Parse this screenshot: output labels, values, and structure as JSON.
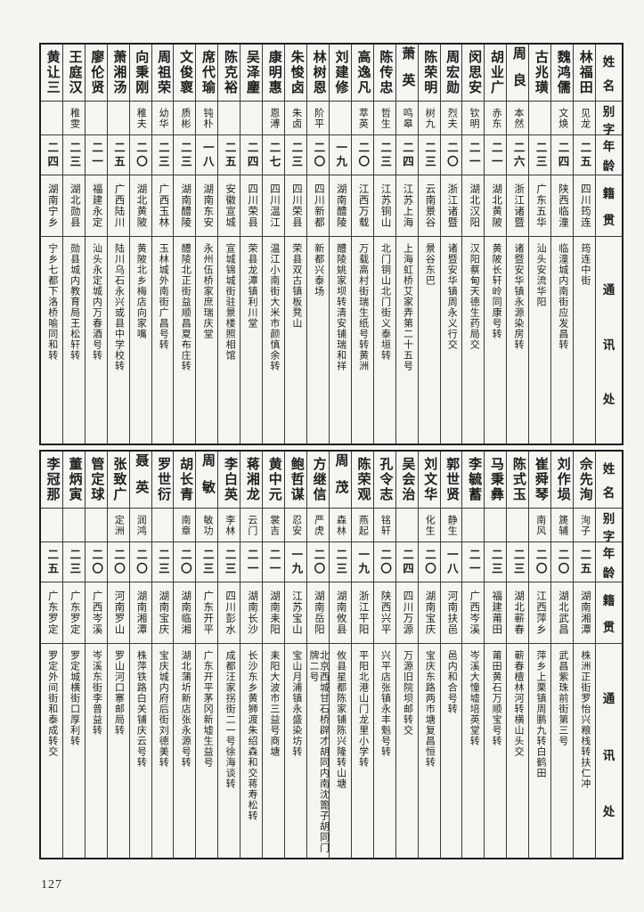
{
  "page": {
    "number": "127"
  },
  "headers": [
    "姓名",
    "别字",
    "年龄",
    "籍贯",
    "通讯处"
  ],
  "tables": [
    {
      "entries": [
        {
          "name": "林福田",
          "zi": "见龙",
          "age": "二五",
          "native": "四川筠连",
          "address": "筠连中街"
        },
        {
          "name": "魏鸿儒",
          "zi": "文焕",
          "age": "二四",
          "native": "陕西临潼",
          "address": "临潼城内南街应发昌转"
        },
        {
          "name": "古兆璜",
          "zi": "",
          "age": "二三",
          "native": "广东五华",
          "address": "汕头安流华阳"
        },
        {
          "name": "周良",
          "zi": "本然",
          "age": "二六",
          "native": "浙江诸暨",
          "address": "诸暨安华镇永源染房转"
        },
        {
          "name": "胡业广",
          "zi": "赤东",
          "age": "二一",
          "native": "湖北黄陂",
          "address": "黄陂长轩岭同康号转"
        },
        {
          "name": "闵思安",
          "zi": "钦明",
          "age": "二一",
          "native": "湖北汉阳",
          "address": "汉阳蔡甸天德生药局交"
        },
        {
          "name": "周宏勋",
          "zi": "烈夫",
          "age": "二〇",
          "native": "浙江诸暨",
          "address": "诸暨安华镇周永义行交"
        },
        {
          "name": "陈荣明",
          "zi": "树九",
          "age": "二三",
          "native": "云南景谷",
          "address": "景谷东巴"
        },
        {
          "name": "萧英",
          "zi": "鸣皋",
          "age": "二四",
          "native": "江苏上海",
          "address": "上海虹桥艾家弄第二十五号"
        },
        {
          "name": "陈传忠",
          "zi": "哲生",
          "age": "二三",
          "native": "江苏铜山",
          "address": "北门铜山北门街义泰垣转"
        },
        {
          "name": "高逸凡",
          "zi": "萃英",
          "age": "二〇",
          "native": "江西万载",
          "address": "万载高村街瑞生纸号转黄洲"
        },
        {
          "name": "刘建修",
          "zi": "",
          "age": "一九",
          "native": "湖南醴陵",
          "address": "醴陵姚家坝转清安铺瑞和祥"
        },
        {
          "name": "林树恩",
          "zi": "阶平",
          "age": "二〇",
          "native": "四川新都",
          "address": "新都兴泰场"
        },
        {
          "name": "朱悛卤",
          "zi": "朱卤",
          "age": "二三",
          "native": "四川荣县",
          "address": "荣县双古镇板凳山"
        },
        {
          "name": "康明惠",
          "zi": "恩溥",
          "age": "二七",
          "native": "四川温江",
          "address": "温江小南街大米市颜慎余转"
        },
        {
          "name": "吴泽麈",
          "zi": "",
          "age": "二四",
          "native": "四川荣县",
          "address": "荣县龙潭镇利川堂"
        },
        {
          "name": "陈克裕",
          "zi": "",
          "age": "二五",
          "native": "安徽宣城",
          "address": "宣城锦城街驻景楼照相馆"
        },
        {
          "name": "席代瑜",
          "zi": "钝朴",
          "age": "一八",
          "native": "湖南东安",
          "address": "永州伍桥家庶瑞庆堂"
        },
        {
          "name": "文俊褱",
          "zi": "质彬",
          "age": "二三",
          "native": "湖南醴陵",
          "address": "醴陵北正街益顺昌夏布庄转"
        },
        {
          "name": "周祖荣",
          "zi": "幼华",
          "age": "二三",
          "native": "广西玉林",
          "address": "玉林城外南街广昌号转"
        },
        {
          "name": "向秉刚",
          "zi": "稚夫",
          "age": "二〇",
          "native": "湖北黄陂",
          "address": "黄陂北乡梅店向家嘴"
        },
        {
          "name": "萧湘汤",
          "zi": "",
          "age": "二五",
          "native": "广西陆川",
          "address": "陆川乌石永兴或县中学校转"
        },
        {
          "name": "廖伦贤",
          "zi": "",
          "age": "二一",
          "native": "福建永定",
          "address": "汕头永定城内万春酒号转"
        },
        {
          "name": "王庭汉",
          "zi": "稚雯",
          "age": "二三",
          "native": "湖北勋县",
          "address": "勋县城内教育局王松轩转"
        },
        {
          "name": "黄让三",
          "zi": "",
          "age": "二四",
          "native": "湖南宁乡",
          "address": "宁乡七都下洛桥喻同和转"
        }
      ]
    },
    {
      "entries": [
        {
          "name": "佘先洵",
          "zi": "洵子",
          "age": "二五",
          "native": "湖南湘潭",
          "address": "株洲正街罗怡兴粮栈转扶仁冲"
        },
        {
          "name": "刘作埙",
          "zi": "篪辅",
          "age": "二〇",
          "native": "湖北武昌",
          "address": "武昌紫珠前街第三号"
        },
        {
          "name": "崔舜琴",
          "zi": "南风",
          "age": "二〇",
          "native": "江西萍乡",
          "address": "萍乡上栗镇周鹏九转白鹤田"
        },
        {
          "name": "陈式玉",
          "zi": "",
          "age": "二三",
          "native": "湖北蕲春",
          "address": "蕲春檀林河转横山头交"
        },
        {
          "name": "马秉彝",
          "zi": "",
          "age": "二三",
          "native": "福建莆田",
          "address": "莆田黄石万顺宝号转"
        },
        {
          "name": "李毓蓄",
          "zi": "",
          "age": "二一",
          "native": "广西岑溪",
          "address": "岑溪大憧墟培英堂转"
        },
        {
          "name": "郭世贤",
          "zi": "静生",
          "age": "一八",
          "native": "河南扶邑",
          "address": "邑内和合号转"
        },
        {
          "name": "刘文华",
          "zi": "化生",
          "age": "二〇",
          "native": "湖南宝庆",
          "address": "宝庆东路两市塘复昌恒转"
        },
        {
          "name": "吴会治",
          "zi": "",
          "age": "二四",
          "native": "四川万源",
          "address": "万源旧院坝邮转交"
        },
        {
          "name": "孔令志",
          "zi": "铭轩",
          "age": "二〇",
          "native": "陕西兴平",
          "address": "兴平店张镇永丰魁号转"
        },
        {
          "name": "陈荣观",
          "zi": "燕起",
          "age": "一九",
          "native": "浙江平阳",
          "address": "平阳北港山门龙里小学转"
        },
        {
          "name": "周茂",
          "zi": "森林",
          "age": "二三",
          "native": "湖南攸县",
          "address": "攸县星都陈家铺陈兴隆转山塘"
        },
        {
          "name": "方继信",
          "zi": "严虎",
          "age": "二〇",
          "native": "湖南岳阳",
          "address": "北京西城甘石桥辟才胡同内南沈篦子胡同门牌二号"
        },
        {
          "name": "鲍哲谋",
          "zi": "忍安",
          "age": "一九",
          "native": "江苏宝山",
          "address": "宝山月浦镇永盛染坊转"
        },
        {
          "name": "黄中元",
          "zi": "裳吉",
          "age": "二一",
          "native": "湖南耒阳",
          "address": "耒阳大波市三益号商塘"
        },
        {
          "name": "蒋湘龙",
          "zi": "云门",
          "age": "二一",
          "native": "湖南长沙",
          "address": "长沙东乡黄狮渡朱绍森和交蒋寿松转"
        },
        {
          "name": "李白英",
          "zi": "李林",
          "age": "二三",
          "native": "四川彭水",
          "address": "成都汪家拐街二一号徐海谈转"
        },
        {
          "name": "周敏",
          "zi": "敏功",
          "age": "二三",
          "native": "广东开平",
          "address": "广东开平茅冈新墟生益号"
        },
        {
          "name": "胡长青",
          "zi": "南章",
          "age": "二〇",
          "native": "湖南临湘",
          "address": "湖北蒲圻新店张永源号转"
        },
        {
          "name": "罗世衍",
          "zi": "",
          "age": "二三",
          "native": "湖南宝庆",
          "address": "宝庆城内府后街刘德美转"
        },
        {
          "name": "聂英",
          "zi": "润鸿",
          "age": "二〇",
          "native": "湖南湘潭",
          "address": "株萍铁路白关铺庆云号转"
        },
        {
          "name": "张致广",
          "zi": "定洲",
          "age": "二〇",
          "native": "河南罗山",
          "address": "罗山河口寨邮局转"
        },
        {
          "name": "管定球",
          "zi": "",
          "age": "二〇",
          "native": "广西岑溪",
          "address": "岑溪东街李普益转"
        },
        {
          "name": "董炳寅",
          "zi": "",
          "age": "二三",
          "native": "广东罗定",
          "address": "罗定城横街口厚利转"
        },
        {
          "name": "李冠那",
          "zi": "",
          "age": "二五",
          "native": "广东罗定",
          "address": "罗定外间街和泰成转交"
        }
      ]
    }
  ]
}
